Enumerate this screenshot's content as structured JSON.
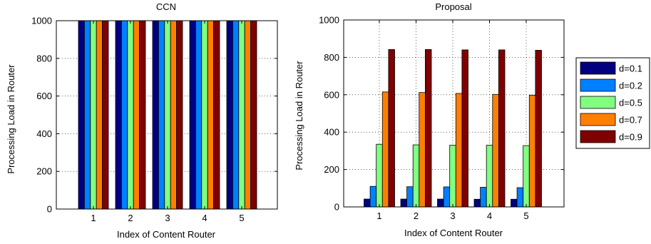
{
  "colors": {
    "d=0.1": "#000080",
    "d=0.2": "#0080ff",
    "d=0.5": "#80ff80",
    "d=0.7": "#ff8000",
    "d=0.9": "#800000"
  },
  "chart_data": [
    {
      "type": "bar",
      "title": "CCN",
      "xlabel": "Index of Content Router",
      "ylabel": "Processing Load in Router",
      "categories": [
        "1",
        "2",
        "3",
        "4",
        "5"
      ],
      "ylim": [
        0,
        1000
      ],
      "yticks": [
        "0",
        "200",
        "400",
        "600",
        "800",
        "1000"
      ],
      "grid": true,
      "series": [
        {
          "name": "d=0.1",
          "values": [
            1000,
            1000,
            1000,
            1000,
            1000
          ]
        },
        {
          "name": "d=0.2",
          "values": [
            1000,
            1000,
            1000,
            1000,
            1000
          ]
        },
        {
          "name": "d=0.5",
          "values": [
            1000,
            1000,
            1000,
            1000,
            1000
          ]
        },
        {
          "name": "d=0.7",
          "values": [
            1000,
            1000,
            1000,
            1000,
            1000
          ]
        },
        {
          "name": "d=0.9",
          "values": [
            1000,
            1000,
            1000,
            1000,
            1000
          ]
        }
      ]
    },
    {
      "type": "bar",
      "title": "Proposal",
      "xlabel": "Index of Content Router",
      "ylabel": "Processing Load in Router",
      "categories": [
        "1",
        "2",
        "3",
        "4",
        "5"
      ],
      "ylim": [
        0,
        1000
      ],
      "yticks": [
        "0",
        "200",
        "400",
        "600",
        "800",
        "1000"
      ],
      "grid": true,
      "legend": "outside-right",
      "series": [
        {
          "name": "d=0.1",
          "values": [
            42,
            42,
            42,
            41,
            41
          ]
        },
        {
          "name": "d=0.2",
          "values": [
            110,
            108,
            107,
            105,
            103
          ]
        },
        {
          "name": "d=0.5",
          "values": [
            335,
            332,
            330,
            330,
            328
          ]
        },
        {
          "name": "d=0.7",
          "values": [
            615,
            612,
            607,
            602,
            598
          ]
        },
        {
          "name": "d=0.9",
          "values": [
            842,
            842,
            840,
            840,
            838
          ]
        }
      ]
    }
  ]
}
